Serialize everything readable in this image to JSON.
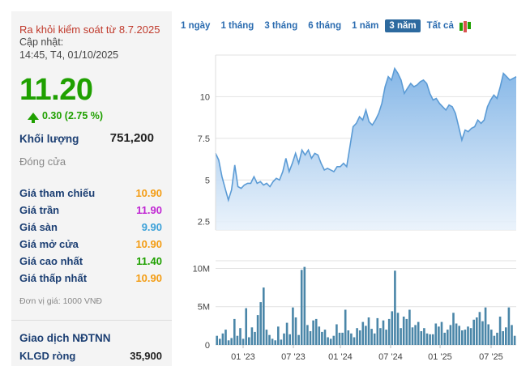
{
  "stock": {
    "notice": "Ra khỏi kiểm soát từ 8.7.2025",
    "updated_label": "Cập nhật:",
    "updated_time": "14:45, T4, 01/10/2025",
    "price": "11.20",
    "change": "0.30 (2.75 %)",
    "volume_label": "Khối lượng",
    "volume_value": "751,200",
    "close_label": "Đóng cửa",
    "stats": [
      {
        "label": "Giá tham chiếu",
        "value": "10.90",
        "color": "#f39c12"
      },
      {
        "label": "Giá trần",
        "value": "11.90",
        "color": "#c026d3"
      },
      {
        "label": "Giá sàn",
        "value": "9.90",
        "color": "#3aa0d8"
      },
      {
        "label": "Giá mở cửa",
        "value": "10.90",
        "color": "#f39c12"
      },
      {
        "label": "Giá cao nhất",
        "value": "11.40",
        "color": "#1fa000"
      },
      {
        "label": "Giá thấp nhất",
        "value": "10.90",
        "color": "#f39c12"
      }
    ],
    "unit_note": "Đơn vị giá: 1000 VNĐ",
    "foreign_label": "Giao dịch NĐTNN",
    "klgd_label": "KLGD ròng",
    "klgd_value": "35,900"
  },
  "tabs": [
    {
      "label": "1 ngày",
      "active": false
    },
    {
      "label": "1 tháng",
      "active": false
    },
    {
      "label": "3 tháng",
      "active": false
    },
    {
      "label": "6 tháng",
      "active": false
    },
    {
      "label": "1 năm",
      "active": false
    },
    {
      "label": "3 năm",
      "active": true
    },
    {
      "label": "Tất cả",
      "active": false
    }
  ],
  "colors": {
    "up": "#1fa000",
    "line": "#5b9bd5",
    "bar": "#4a86a8"
  },
  "chart_data": {
    "type": "area",
    "price": {
      "y_ticks": [
        "2.5",
        "5",
        "7.5",
        "10"
      ],
      "ylim": [
        2,
        12.5
      ],
      "values": [
        6.6,
        6.2,
        5.2,
        4.5,
        3.8,
        4.4,
        5.9,
        4.6,
        4.5,
        4.7,
        4.8,
        4.8,
        5.2,
        4.8,
        4.9,
        4.7,
        4.8,
        4.6,
        4.9,
        5.1,
        5.0,
        5.5,
        6.3,
        5.5,
        6.0,
        6.6,
        6.0,
        6.8,
        6.5,
        6.8,
        6.3,
        6.6,
        6.5,
        6.0,
        5.6,
        5.7,
        5.6,
        5.5,
        5.8,
        5.8,
        6.0,
        5.8,
        7.0,
        8.2,
        8.4,
        8.8,
        8.6,
        9.2,
        8.5,
        8.3,
        8.6,
        9.0,
        9.6,
        10.6,
        11.2,
        11.0,
        11.7,
        11.4,
        11.0,
        10.2,
        10.5,
        10.8,
        10.6,
        10.7,
        10.9,
        11.0,
        10.8,
        10.2,
        9.8,
        9.9,
        9.6,
        9.4,
        9.2,
        9.5,
        9.4,
        9.0,
        8.2,
        7.4,
        8.0,
        7.9,
        8.1,
        8.2,
        8.6,
        8.4,
        8.6,
        9.4,
        9.8,
        10.1,
        9.9,
        10.6,
        11.4,
        11.2,
        11.0,
        11.1,
        11.2
      ]
    },
    "volume": {
      "y_ticks": [
        "0",
        "5M",
        "10M"
      ],
      "ylim": [
        0,
        11
      ],
      "values": [
        1.2,
        0.8,
        1.5,
        2.0,
        0.6,
        0.9,
        3.4,
        1.2,
        2.2,
        0.8,
        4.8,
        1.0,
        2.3,
        1.7,
        3.9,
        5.6,
        7.5,
        2.0,
        1.3,
        0.8,
        0.6,
        2.4,
        0.7,
        1.5,
        2.9,
        1.4,
        4.9,
        3.6,
        1.3,
        9.8,
        10.2,
        2.6,
        1.8,
        3.2,
        3.4,
        2.4,
        1.7,
        2.0,
        1.0,
        0.8,
        1.2,
        2.7,
        1.6,
        1.6,
        4.6,
        1.9,
        1.5,
        1.0,
        2.2,
        1.9,
        3.0,
        2.5,
        3.6,
        2.1,
        1.5,
        3.5,
        2.2,
        3.2,
        2.0,
        3.4,
        4.4,
        9.7,
        4.2,
        2.2,
        3.7,
        3.4,
        4.6,
        2.3,
        2.6,
        3.0,
        1.8,
        2.2,
        1.5,
        1.4,
        1.4,
        2.8,
        2.4,
        3.0,
        1.6,
        2.0,
        2.6,
        4.2,
        2.8,
        2.5,
        1.9,
        2.0,
        2.4,
        2.2,
        3.3,
        3.6,
        4.3,
        3.1,
        4.9,
        2.7,
        2.0,
        1.2,
        1.6,
        3.7,
        1.8,
        2.3,
        4.9,
        2.6,
        1.2
      ]
    },
    "x_ticks": [
      "01 '23",
      "07 '23",
      "01 '24",
      "07 '24",
      "01 '25",
      "07 '25"
    ]
  }
}
